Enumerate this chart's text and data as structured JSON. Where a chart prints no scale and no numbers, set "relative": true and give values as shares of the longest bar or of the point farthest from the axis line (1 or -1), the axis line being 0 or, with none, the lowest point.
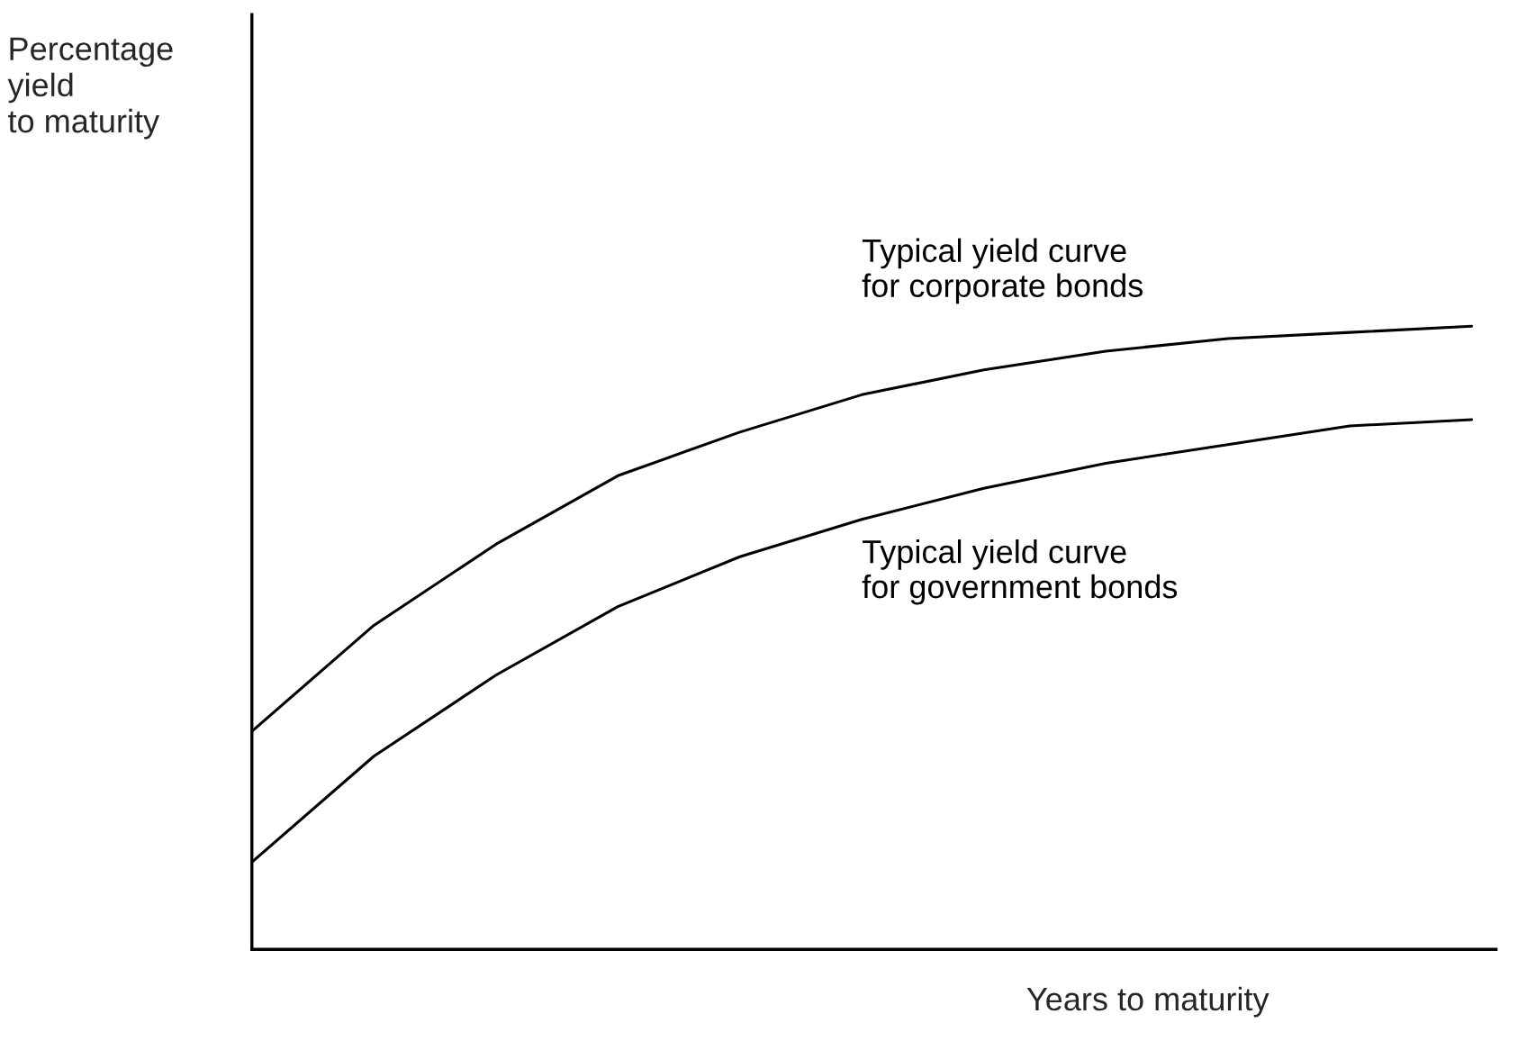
{
  "chart_data": {
    "type": "line",
    "relative": true,
    "xlabel": "Years to maturity",
    "annotations": [
      "Percentage\nyield\nto maturity"
    ],
    "categories": [
      null,
      null,
      null,
      null,
      null,
      null,
      null,
      null,
      null,
      null,
      null
    ],
    "series": [
      {
        "name": "Typical yield curve\nfor corporate bonds",
        "color": "#000000",
        "values": [
          0.35,
          0.52,
          0.65,
          0.76,
          0.83,
          0.89,
          0.93,
          0.96,
          0.98,
          0.99,
          1.0
        ]
      },
      {
        "name": "Typical yield curve\nfor government bonds",
        "color": "#000000",
        "values": [
          0.14,
          0.31,
          0.44,
          0.55,
          0.63,
          0.69,
          0.74,
          0.78,
          0.81,
          0.84,
          0.85
        ]
      }
    ],
    "legend": false,
    "marker": "none",
    "line_style": "solid"
  }
}
